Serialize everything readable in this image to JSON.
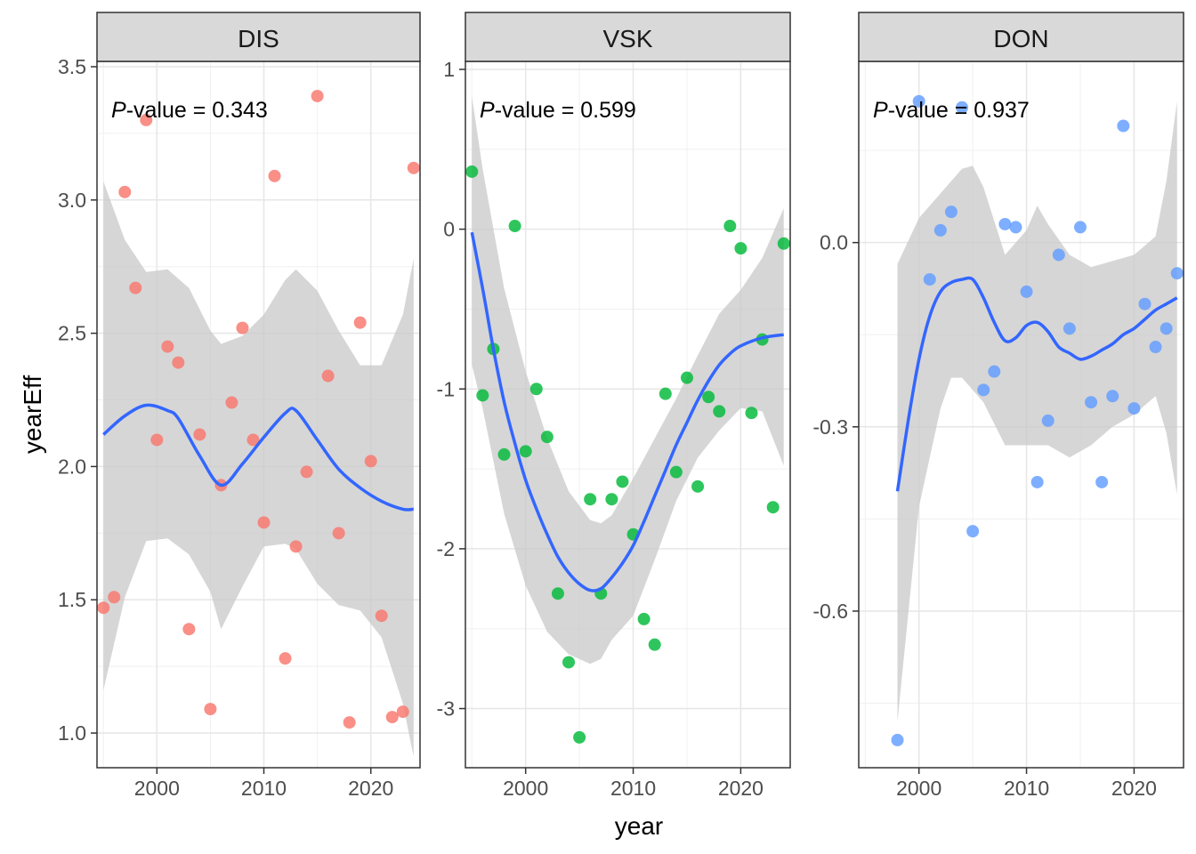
{
  "chart_data": {
    "type": "scatter",
    "xlabel": "year",
    "ylabel": "yearEff",
    "grid": true,
    "legend": "none",
    "colors": {
      "DIS": "#F8766D",
      "VSK": "#00BA38",
      "DON": "#619CFF",
      "smooth": "#3366FF",
      "ribbon": "#C8C8C8"
    },
    "panels": [
      {
        "name": "DIS",
        "p_prefix": "P",
        "p_text": "-value = 0.343",
        "xlim": [
          1994.4,
          2024.6
        ],
        "ylim": [
          0.87,
          3.52
        ],
        "xticks": [
          2000,
          2010,
          2020
        ],
        "yticks": [
          1.0,
          1.5,
          2.0,
          2.5,
          3.0,
          3.5
        ],
        "ytick_labels": [
          "1.0",
          "1.5",
          "2.0",
          "2.5",
          "3.0",
          "3.5"
        ],
        "points": [
          [
            1995,
            1.47
          ],
          [
            1996,
            1.51
          ],
          [
            1997,
            3.03
          ],
          [
            1998,
            2.67
          ],
          [
            1999,
            3.3
          ],
          [
            2000,
            2.1
          ],
          [
            2001,
            2.45
          ],
          [
            2002,
            2.39
          ],
          [
            2003,
            1.39
          ],
          [
            2004,
            2.12
          ],
          [
            2005,
            1.09
          ],
          [
            2006,
            1.93
          ],
          [
            2007,
            2.24
          ],
          [
            2008,
            2.52
          ],
          [
            2009,
            2.1
          ],
          [
            2010,
            1.79
          ],
          [
            2011,
            3.09
          ],
          [
            2012,
            1.28
          ],
          [
            2013,
            1.7
          ],
          [
            2014,
            1.98
          ],
          [
            2015,
            3.39
          ],
          [
            2016,
            2.34
          ],
          [
            2017,
            1.75
          ],
          [
            2018,
            1.04
          ],
          [
            2019,
            2.54
          ],
          [
            2020,
            2.02
          ],
          [
            2021,
            1.44
          ],
          [
            2022,
            1.06
          ],
          [
            2023,
            1.08
          ],
          [
            2024,
            3.12
          ]
        ],
        "smooth": [
          [
            1995,
            2.12
          ],
          [
            1997,
            2.19
          ],
          [
            1999,
            2.23
          ],
          [
            2001,
            2.21
          ],
          [
            2002,
            2.18
          ],
          [
            2004,
            2.04
          ],
          [
            2006,
            1.93
          ],
          [
            2008,
            2.01
          ],
          [
            2010,
            2.11
          ],
          [
            2012,
            2.2
          ],
          [
            2013,
            2.21
          ],
          [
            2015,
            2.1
          ],
          [
            2017,
            1.99
          ],
          [
            2019,
            1.92
          ],
          [
            2021,
            1.87
          ],
          [
            2023,
            1.84
          ],
          [
            2024,
            1.84
          ]
        ],
        "ribbon_upper": [
          [
            1995,
            3.07
          ],
          [
            1997,
            2.85
          ],
          [
            1999,
            2.73
          ],
          [
            2001,
            2.74
          ],
          [
            2003,
            2.67
          ],
          [
            2005,
            2.51
          ],
          [
            2006,
            2.46
          ],
          [
            2008,
            2.49
          ],
          [
            2010,
            2.57
          ],
          [
            2012,
            2.7
          ],
          [
            2013,
            2.74
          ],
          [
            2015,
            2.66
          ],
          [
            2017,
            2.51
          ],
          [
            2019,
            2.38
          ],
          [
            2021,
            2.38
          ],
          [
            2023,
            2.57
          ],
          [
            2024,
            2.78
          ]
        ],
        "ribbon_lower": [
          [
            1995,
            1.16
          ],
          [
            1997,
            1.51
          ],
          [
            1999,
            1.72
          ],
          [
            2001,
            1.73
          ],
          [
            2003,
            1.67
          ],
          [
            2005,
            1.53
          ],
          [
            2006,
            1.39
          ],
          [
            2008,
            1.55
          ],
          [
            2010,
            1.7
          ],
          [
            2012,
            1.71
          ],
          [
            2013,
            1.69
          ],
          [
            2015,
            1.56
          ],
          [
            2017,
            1.48
          ],
          [
            2019,
            1.46
          ],
          [
            2021,
            1.36
          ],
          [
            2023,
            1.11
          ],
          [
            2024,
            0.91
          ]
        ]
      },
      {
        "name": "VSK",
        "p_prefix": "P",
        "p_text": "-value = 0.599",
        "xlim": [
          1994.4,
          2024.6
        ],
        "ylim": [
          -3.37,
          1.05
        ],
        "xticks": [
          2000,
          2010,
          2020
        ],
        "yticks": [
          -3,
          -2,
          -1,
          0,
          1
        ],
        "ytick_labels": [
          "-3",
          "-2",
          "-1",
          "0",
          "1"
        ],
        "points": [
          [
            1995,
            0.36
          ],
          [
            1996,
            -1.04
          ],
          [
            1997,
            -0.75
          ],
          [
            1998,
            -1.41
          ],
          [
            1999,
            0.02
          ],
          [
            2000,
            -1.39
          ],
          [
            2001,
            -1.0
          ],
          [
            2002,
            -1.3
          ],
          [
            2003,
            -2.28
          ],
          [
            2004,
            -2.71
          ],
          [
            2005,
            -3.18
          ],
          [
            2006,
            -1.69
          ],
          [
            2007,
            -2.28
          ],
          [
            2008,
            -1.69
          ],
          [
            2009,
            -1.58
          ],
          [
            2010,
            -1.91
          ],
          [
            2011,
            -2.44
          ],
          [
            2012,
            -2.6
          ],
          [
            2013,
            -1.03
          ],
          [
            2014,
            -1.52
          ],
          [
            2015,
            -0.93
          ],
          [
            2016,
            -1.61
          ],
          [
            2017,
            -1.05
          ],
          [
            2018,
            -1.14
          ],
          [
            2019,
            0.02
          ],
          [
            2020,
            -0.12
          ],
          [
            2021,
            -1.15
          ],
          [
            2022,
            -0.69
          ],
          [
            2023,
            -1.74
          ],
          [
            2024,
            -0.09
          ]
        ],
        "smooth": [
          [
            1995,
            -0.02
          ],
          [
            1996,
            -0.37
          ],
          [
            1997,
            -0.75
          ],
          [
            1998,
            -1.08
          ],
          [
            1999,
            -1.34
          ],
          [
            2000,
            -1.57
          ],
          [
            2001,
            -1.75
          ],
          [
            2002,
            -1.91
          ],
          [
            2003,
            -2.05
          ],
          [
            2004,
            -2.15
          ],
          [
            2005,
            -2.22
          ],
          [
            2006,
            -2.26
          ],
          [
            2007,
            -2.25
          ],
          [
            2008,
            -2.18
          ],
          [
            2009,
            -2.09
          ],
          [
            2010,
            -1.98
          ],
          [
            2011,
            -1.83
          ],
          [
            2012,
            -1.67
          ],
          [
            2013,
            -1.51
          ],
          [
            2014,
            -1.35
          ],
          [
            2015,
            -1.21
          ],
          [
            2016,
            -1.07
          ],
          [
            2017,
            -0.95
          ],
          [
            2018,
            -0.85
          ],
          [
            2019,
            -0.78
          ],
          [
            2020,
            -0.73
          ],
          [
            2022,
            -0.68
          ],
          [
            2024,
            -0.66
          ]
        ],
        "ribbon_upper": [
          [
            1995,
            0.83
          ],
          [
            1996,
            0.38
          ],
          [
            1998,
            -0.37
          ],
          [
            2000,
            -0.89
          ],
          [
            2002,
            -1.31
          ],
          [
            2004,
            -1.64
          ],
          [
            2006,
            -1.82
          ],
          [
            2007,
            -1.84
          ],
          [
            2008,
            -1.79
          ],
          [
            2010,
            -1.56
          ],
          [
            2012,
            -1.31
          ],
          [
            2014,
            -1.06
          ],
          [
            2016,
            -0.79
          ],
          [
            2018,
            -0.53
          ],
          [
            2020,
            -0.38
          ],
          [
            2022,
            -0.18
          ],
          [
            2024,
            0.13
          ]
        ],
        "ribbon_lower": [
          [
            1995,
            -0.85
          ],
          [
            1996,
            -1.12
          ],
          [
            1998,
            -1.78
          ],
          [
            2000,
            -2.23
          ],
          [
            2002,
            -2.52
          ],
          [
            2004,
            -2.66
          ],
          [
            2006,
            -2.72
          ],
          [
            2007,
            -2.69
          ],
          [
            2008,
            -2.57
          ],
          [
            2010,
            -2.42
          ],
          [
            2012,
            -2.07
          ],
          [
            2014,
            -1.7
          ],
          [
            2016,
            -1.43
          ],
          [
            2018,
            -1.26
          ],
          [
            2020,
            -1.12
          ],
          [
            2022,
            -1.14
          ],
          [
            2024,
            -1.48
          ]
        ]
      },
      {
        "name": "DON",
        "p_prefix": "P",
        "p_text": "-value = 0.937",
        "xlim": [
          1994.4,
          2024.6
        ],
        "ylim": [
          -0.855,
          0.295
        ],
        "xticks": [
          2000,
          2010,
          2020
        ],
        "yticks": [
          -0.6,
          -0.3,
          0.0
        ],
        "ytick_labels": [
          "-0.6",
          "-0.3",
          "0.0"
        ],
        "points": [
          [
            1998,
            -0.81
          ],
          [
            2000,
            0.23
          ],
          [
            2001,
            -0.06
          ],
          [
            2002,
            0.02
          ],
          [
            2003,
            0.05
          ],
          [
            2004,
            0.22
          ],
          [
            2005,
            -0.47
          ],
          [
            2006,
            -0.24
          ],
          [
            2007,
            -0.21
          ],
          [
            2008,
            0.03
          ],
          [
            2009,
            0.025
          ],
          [
            2010,
            -0.08
          ],
          [
            2011,
            -0.39
          ],
          [
            2012,
            -0.29
          ],
          [
            2013,
            -0.02
          ],
          [
            2015,
            0.025
          ],
          [
            2014,
            -0.14
          ],
          [
            2016,
            -0.26
          ],
          [
            2017,
            -0.39
          ],
          [
            2018,
            -0.25
          ],
          [
            2019,
            0.19
          ],
          [
            2020,
            -0.27
          ],
          [
            2021,
            -0.1
          ],
          [
            2022,
            -0.17
          ],
          [
            2023,
            -0.14
          ],
          [
            2024,
            -0.05
          ]
        ],
        "smooth": [
          [
            1998,
            -0.405
          ],
          [
            1999,
            -0.29
          ],
          [
            2000,
            -0.19
          ],
          [
            2001,
            -0.12
          ],
          [
            2002,
            -0.08
          ],
          [
            2003,
            -0.065
          ],
          [
            2004,
            -0.06
          ],
          [
            2005,
            -0.06
          ],
          [
            2006,
            -0.09
          ],
          [
            2007,
            -0.13
          ],
          [
            2008,
            -0.16
          ],
          [
            2009,
            -0.155
          ],
          [
            2010,
            -0.135
          ],
          [
            2011,
            -0.13
          ],
          [
            2012,
            -0.145
          ],
          [
            2013,
            -0.17
          ],
          [
            2014,
            -0.18
          ],
          [
            2015,
            -0.19
          ],
          [
            2016,
            -0.185
          ],
          [
            2017,
            -0.175
          ],
          [
            2018,
            -0.165
          ],
          [
            2019,
            -0.15
          ],
          [
            2020,
            -0.14
          ],
          [
            2021,
            -0.125
          ],
          [
            2022,
            -0.11
          ],
          [
            2023,
            -0.1
          ],
          [
            2024,
            -0.09
          ]
        ],
        "ribbon_upper": [
          [
            1998,
            -0.035
          ],
          [
            2000,
            0.04
          ],
          [
            2002,
            0.08
          ],
          [
            2004,
            0.12
          ],
          [
            2005,
            0.125
          ],
          [
            2006,
            0.09
          ],
          [
            2008,
            -0.02
          ],
          [
            2010,
            0.02
          ],
          [
            2011,
            0.06
          ],
          [
            2012,
            0.03
          ],
          [
            2014,
            -0.02
          ],
          [
            2016,
            -0.04
          ],
          [
            2018,
            -0.03
          ],
          [
            2020,
            -0.02
          ],
          [
            2022,
            0.01
          ],
          [
            2023,
            0.1
          ],
          [
            2024,
            0.23
          ]
        ],
        "ribbon_lower": [
          [
            1998,
            -0.78
          ],
          [
            2000,
            -0.43
          ],
          [
            2002,
            -0.27
          ],
          [
            2003,
            -0.22
          ],
          [
            2004,
            -0.22
          ],
          [
            2005,
            -0.24
          ],
          [
            2006,
            -0.26
          ],
          [
            2008,
            -0.33
          ],
          [
            2010,
            -0.33
          ],
          [
            2012,
            -0.33
          ],
          [
            2014,
            -0.35
          ],
          [
            2016,
            -0.33
          ],
          [
            2018,
            -0.3
          ],
          [
            2020,
            -0.28
          ],
          [
            2022,
            -0.25
          ],
          [
            2023,
            -0.31
          ],
          [
            2024,
            -0.41
          ]
        ]
      }
    ]
  }
}
